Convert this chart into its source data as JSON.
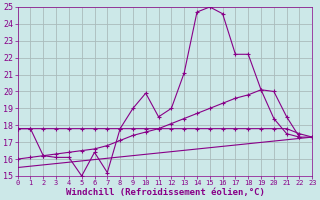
{
  "bg": "#cce8e8",
  "grid_color": "#aabbbb",
  "lc": "#880088",
  "xlim": [
    0,
    23
  ],
  "ylim": [
    15,
    25
  ],
  "xticks": [
    0,
    1,
    2,
    3,
    4,
    5,
    6,
    7,
    8,
    9,
    10,
    11,
    12,
    13,
    14,
    15,
    16,
    17,
    18,
    19,
    20,
    21,
    22,
    23
  ],
  "yticks": [
    15,
    16,
    17,
    18,
    19,
    20,
    21,
    22,
    23,
    24,
    25
  ],
  "xlabel": "Windchill (Refroidissement éolien,°C)",
  "line1_x": [
    0,
    1,
    2,
    3,
    4,
    5,
    6,
    7,
    8,
    9,
    10,
    11,
    12,
    13,
    14,
    15,
    16,
    17,
    18,
    19,
    20,
    21,
    22
  ],
  "line1_y": [
    17.8,
    17.8,
    16.2,
    16.1,
    16.1,
    15.0,
    16.4,
    15.2,
    17.8,
    19.0,
    19.9,
    18.5,
    19.0,
    21.1,
    24.7,
    25.0,
    24.6,
    22.2,
    22.2,
    20.1,
    18.4,
    17.5,
    17.3
  ],
  "line2_x": [
    0,
    1,
    2,
    3,
    4,
    5,
    6,
    7,
    8,
    9,
    10,
    11,
    12,
    13,
    14,
    15,
    16,
    17,
    18,
    19,
    20,
    21,
    22,
    23
  ],
  "line2_y": [
    16.0,
    16.1,
    16.2,
    16.3,
    16.4,
    16.5,
    16.6,
    16.8,
    17.1,
    17.4,
    17.6,
    17.8,
    18.1,
    18.4,
    18.7,
    19.0,
    19.3,
    19.6,
    19.8,
    20.1,
    20.0,
    18.5,
    17.3,
    17.3
  ],
  "line3_x": [
    0,
    1,
    2,
    3,
    4,
    5,
    6,
    7,
    8,
    9,
    10,
    11,
    12,
    13,
    14,
    15,
    16,
    17,
    18,
    19,
    20,
    21,
    22,
    23
  ],
  "line3_y": [
    17.8,
    17.8,
    17.8,
    17.8,
    17.8,
    17.8,
    17.8,
    17.8,
    17.8,
    17.8,
    17.8,
    17.8,
    17.8,
    17.8,
    17.8,
    17.8,
    17.8,
    17.8,
    17.8,
    17.8,
    17.8,
    17.8,
    17.5,
    17.3
  ],
  "line4_x": [
    0,
    23
  ],
  "line4_y": [
    15.5,
    17.3
  ]
}
